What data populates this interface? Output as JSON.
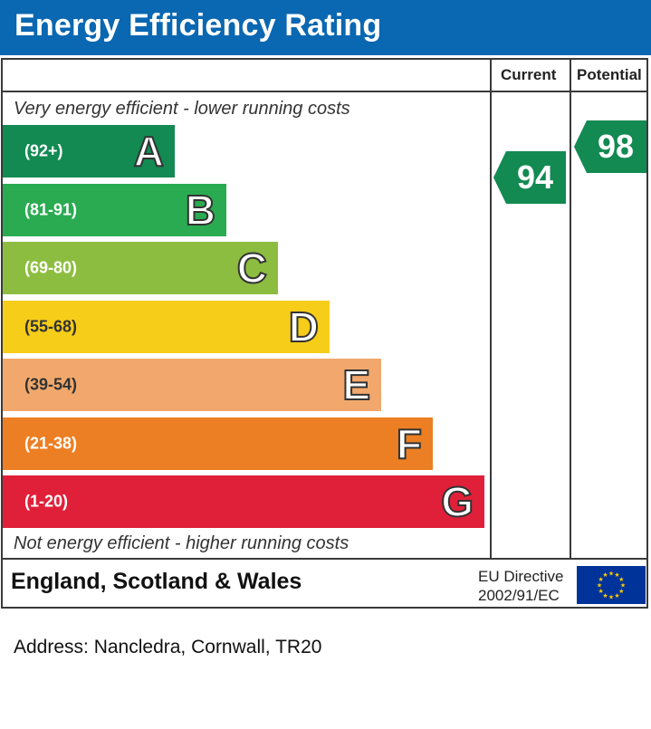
{
  "title": "Energy Efficiency Rating",
  "columns": {
    "current": "Current",
    "potential": "Potential"
  },
  "top_caption": "Very energy efficient - lower running costs",
  "bottom_caption": "Not energy efficient - higher running costs",
  "footer": {
    "region": "England, Scotland & Wales",
    "directive_line1": "EU Directive",
    "directive_line2": "2002/91/EC"
  },
  "address": "Address: Nancledra, Cornwall, TR20",
  "chart_data": {
    "type": "bar",
    "title": "Energy Efficiency Rating",
    "categories": [
      "A",
      "B",
      "C",
      "D",
      "E",
      "F",
      "G"
    ],
    "ranges": [
      "(92+)",
      "(81-91)",
      "(69-80)",
      "(55-68)",
      "(39-54)",
      "(21-38)",
      "(1-20)"
    ],
    "colors": [
      "#128a52",
      "#2aab51",
      "#8dbd40",
      "#f6cd19",
      "#f2a86c",
      "#ec7f23",
      "#e02039"
    ],
    "current": {
      "value": 94,
      "band": "A",
      "color": "#128a52"
    },
    "potential": {
      "value": 98,
      "band": "A",
      "color": "#128a52"
    }
  }
}
